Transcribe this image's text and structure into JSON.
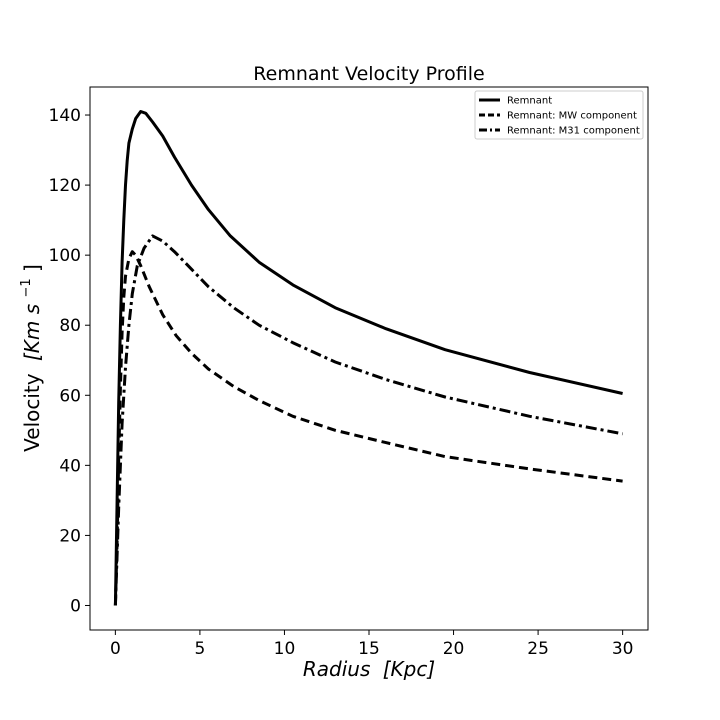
{
  "chart_data": {
    "type": "line",
    "title": "Remnant Velocity Profile",
    "xlabel": {
      "main": "Radius",
      "unit": "[Kpc]"
    },
    "ylabel": {
      "main": "Velocity",
      "unit": "[Km s",
      "exp": "−1",
      "close": "]"
    },
    "xlim": [
      -1.5,
      31.5
    ],
    "ylim": [
      -7,
      148
    ],
    "xticks": [
      0,
      5,
      10,
      15,
      20,
      25,
      30
    ],
    "yticks": [
      0,
      20,
      40,
      60,
      80,
      100,
      120,
      140
    ],
    "grid": false,
    "legend": "top-right",
    "series": [
      {
        "name": "Remnant",
        "dash": "solid",
        "color": "#000000",
        "x": [
          0,
          0.1,
          0.2,
          0.3,
          0.4,
          0.5,
          0.6,
          0.7,
          0.8,
          1.0,
          1.2,
          1.5,
          1.8,
          2.2,
          2.8,
          3.5,
          4.5,
          5.5,
          6.8,
          8.5,
          10.5,
          13,
          16,
          19.5,
          24.5,
          30
        ],
        "y": [
          0,
          30,
          58,
          80,
          98,
          110,
          120,
          127,
          132,
          136,
          139,
          141,
          140.5,
          138,
          134,
          128,
          120,
          113,
          105.5,
          98,
          91.5,
          85,
          79,
          73,
          66.5,
          60.5
        ]
      },
      {
        "name": "Remnant: MW component",
        "dash": "dashed",
        "color": "#000000",
        "x": [
          0,
          0.1,
          0.2,
          0.3,
          0.4,
          0.5,
          0.6,
          0.8,
          1.0,
          1.2,
          1.5,
          2.0,
          2.8,
          3.6,
          4.5,
          5.5,
          7,
          8.5,
          10.5,
          13,
          16,
          19.5,
          24.5,
          30
        ],
        "y": [
          0,
          18,
          42,
          62,
          78,
          88,
          94,
          99,
          101,
          100,
          97,
          91,
          83,
          77,
          72,
          67.5,
          62.5,
          58.5,
          54,
          50,
          46.5,
          42.5,
          39,
          35.5
        ]
      },
      {
        "name": "Remnant: M31 component",
        "dash": "dashdot",
        "color": "#000000",
        "x": [
          0,
          0.2,
          0.4,
          0.6,
          0.8,
          1.0,
          1.3,
          1.7,
          2.2,
          2.8,
          3.5,
          4.5,
          5.5,
          7,
          8.5,
          10.5,
          13,
          16,
          19.5,
          24.5,
          30
        ],
        "y": [
          0,
          28,
          52,
          68,
          80,
          89,
          97,
          102,
          105.5,
          104,
          101,
          96,
          91,
          85,
          80,
          75,
          69.5,
          64.5,
          59.5,
          54,
          49
        ]
      }
    ]
  }
}
